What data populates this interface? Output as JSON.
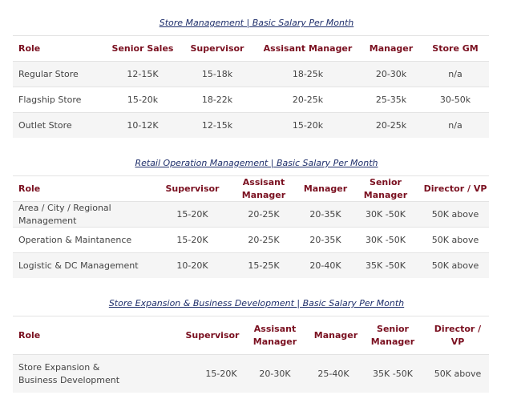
{
  "tables": [
    {
      "title": "Store Management | Basic Salary Per Month",
      "headers": [
        "Role",
        "Senior Sales",
        "Supervisor",
        "Assisant Manager",
        "Manager",
        "Store GM"
      ],
      "rows": [
        [
          "Regular Store",
          "12-15K",
          "15-18k",
          "18-25k",
          "20-30k",
          "n/a"
        ],
        [
          "Flagship Store",
          "15-20k",
          "18-22k",
          "20-25k",
          "25-35k",
          "30-50k"
        ],
        [
          "Outlet Store",
          "10-12K",
          "12-15k",
          "15-20k",
          "20-25k",
          "n/a"
        ]
      ]
    },
    {
      "title": "Retail Operation Management | Basic Salary Per Month",
      "headers": [
        "Role",
        "Supervisor",
        "Assisant Manager",
        "Manager",
        "Senior Manager",
        "Director / VP"
      ],
      "rows": [
        [
          "Area / City / Regional Management",
          "15-20K",
          "20-25K",
          "20-35K",
          "30K -50K",
          "50K above"
        ],
        [
          "Operation & Maintanence",
          "15-20K",
          "20-25K",
          "20-35K",
          "30K -50K",
          "50K above"
        ],
        [
          "Logistic & DC Management",
          "10-20K",
          "15-25K",
          "20-40K",
          "35K -50K",
          "50K above"
        ]
      ]
    },
    {
      "title": "Store Expansion & Business Development | Basic Salary Per Month",
      "headers": [
        "Role",
        "Supervisor",
        "Assisant Manager",
        "Manager",
        "Senior Manager",
        "Director / VP"
      ],
      "rows": [
        [
          "Store Expansion & Business Development",
          "15-20K",
          "20-30K",
          "25-40K",
          "35K -50K",
          "50K above"
        ]
      ]
    }
  ]
}
